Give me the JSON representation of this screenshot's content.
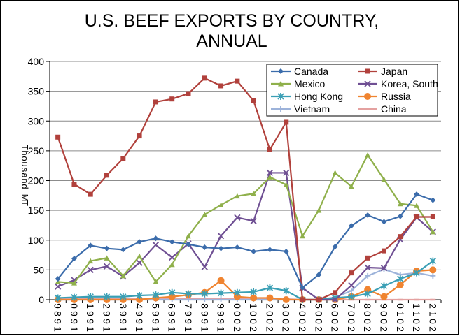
{
  "chart_data": {
    "type": "line",
    "title": "U.S. BEEF EXPORTS BY COUNTRY, ANNUAL",
    "title_lines": [
      "U.S. BEEF EXPORTS BY COUNTRY,",
      "ANNUAL"
    ],
    "ylabel": "MT Thousand",
    "ylabel_chars": [
      "T",
      "h",
      "o",
      "u",
      "s",
      "a",
      "n",
      "d",
      "",
      "M",
      "T"
    ],
    "ylim": [
      0,
      400
    ],
    "yticks": [
      0,
      50,
      100,
      150,
      200,
      250,
      300,
      350,
      400
    ],
    "grid": true,
    "legend_position": "top-right",
    "x": [
      1989,
      1990,
      1991,
      1992,
      1993,
      1994,
      1995,
      1996,
      1997,
      1998,
      1999,
      2000,
      2001,
      2002,
      2003,
      2004,
      2005,
      2006,
      2007,
      2008,
      2009,
      2010,
      2011,
      2012
    ],
    "series": [
      {
        "name": "Canada",
        "color": "#3b6cab",
        "marker": "diamond",
        "values": [
          35,
          69,
          91,
          86,
          84,
          97,
          103,
          97,
          93,
          88,
          86,
          88,
          81,
          84,
          81,
          20,
          42,
          89,
          124,
          142,
          131,
          140,
          177,
          167
        ]
      },
      {
        "name": "Japan",
        "color": "#b1413c",
        "marker": "square",
        "values": [
          273,
          194,
          177,
          209,
          237,
          275,
          332,
          337,
          346,
          372,
          359,
          367,
          334,
          252,
          298,
          0,
          0,
          12,
          45,
          70,
          82,
          106,
          139,
          139
        ]
      },
      {
        "name": "Mexico",
        "color": "#8fb04b",
        "marker": "triangle",
        "values": [
          30,
          28,
          65,
          70,
          40,
          73,
          30,
          59,
          107,
          143,
          159,
          174,
          178,
          206,
          193,
          107,
          150,
          213,
          190,
          243,
          202,
          161,
          158,
          114
        ]
      },
      {
        "name": "Korea, South",
        "color": "#6f4f93",
        "marker": "x",
        "values": [
          22,
          33,
          50,
          56,
          39,
          62,
          92,
          71,
          94,
          55,
          107,
          138,
          132,
          213,
          213,
          20,
          0,
          0,
          24,
          54,
          53,
          101,
          138,
          114
        ]
      },
      {
        "name": "Hong Kong",
        "color": "#3a9fb5",
        "marker": "asterisk",
        "values": [
          3,
          4,
          5,
          5,
          5,
          7,
          8,
          12,
          10,
          10,
          11,
          12,
          13,
          20,
          15,
          0,
          0,
          3,
          5,
          10,
          23,
          35,
          45,
          65
        ]
      },
      {
        "name": "Russia",
        "color": "#f08430",
        "marker": "circle",
        "values": [
          0,
          0,
          0,
          0,
          0,
          0,
          3,
          5,
          8,
          12,
          32,
          5,
          3,
          3,
          0,
          0,
          0,
          0,
          5,
          17,
          5,
          25,
          48,
          50
        ]
      },
      {
        "name": "Vietnam",
        "color": "#9db3da",
        "marker": "plus",
        "values": [
          0,
          0,
          0,
          0,
          0,
          0,
          0,
          0,
          0,
          0,
          0,
          0,
          0,
          0,
          0,
          0,
          0,
          4,
          15,
          40,
          51,
          42,
          45,
          40
        ]
      },
      {
        "name": "China",
        "color": "#e4a1a0",
        "marker": "dash",
        "values": [
          1,
          1,
          1,
          1,
          1,
          1,
          1,
          1,
          1,
          1,
          1,
          1,
          1,
          1,
          1,
          0,
          0,
          0,
          0,
          0,
          0,
          0,
          0,
          0
        ]
      }
    ]
  }
}
